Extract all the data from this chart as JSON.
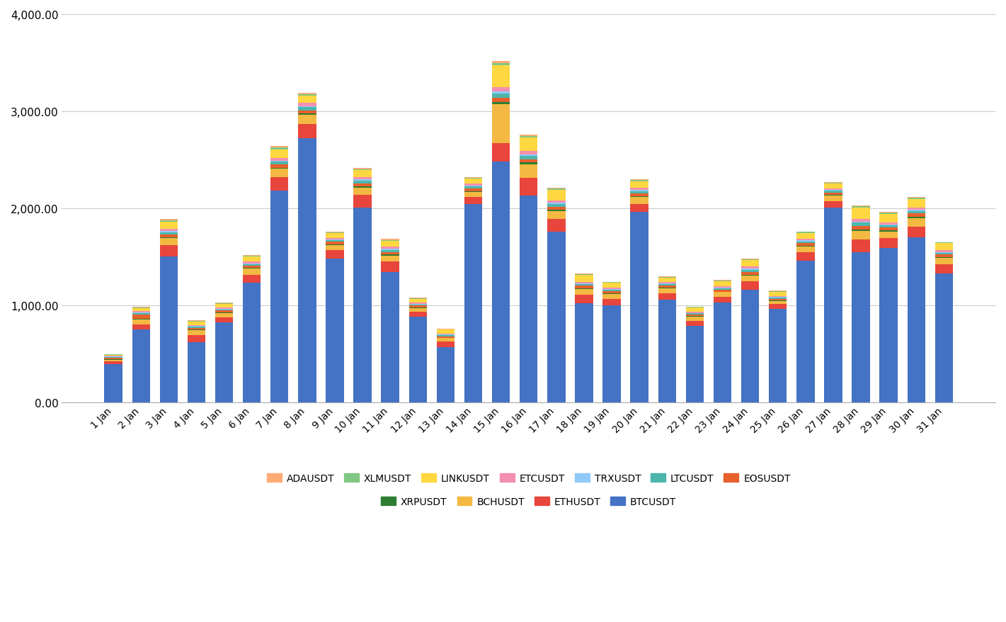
{
  "categories": [
    "1 Jan",
    "2 Jan",
    "3 Jan",
    "4 Jan",
    "5 Jan",
    "6 Jan",
    "7 Jan",
    "8 Jan",
    "9 Jan",
    "10 Jan",
    "11 Jan",
    "12 Jan",
    "13 Jan",
    "14 Jan",
    "15 Jan",
    "16 Jan",
    "17 Jan",
    "18 Jan",
    "19 Jan",
    "20 Jan",
    "21 Jan",
    "22 Jan",
    "23 Jan",
    "24 Jan",
    "25 Jan",
    "26 Jan",
    "27 Jan",
    "28 Jan",
    "29 Jan",
    "30 Jan",
    "31 Jan"
  ],
  "series": {
    "BTCUSDT": [
      390,
      750,
      1500,
      620,
      820,
      1230,
      2180,
      2720,
      1480,
      2010,
      1340,
      880,
      570,
      2040,
      2480,
      2130,
      1760,
      1020,
      1000,
      1960,
      1060,
      790,
      1030,
      1160,
      960,
      1460,
      2010,
      1550,
      1590,
      1700,
      1330
    ],
    "ETHUSDT": [
      30,
      55,
      120,
      70,
      55,
      80,
      140,
      150,
      85,
      130,
      110,
      50,
      55,
      75,
      190,
      180,
      130,
      85,
      65,
      85,
      65,
      50,
      60,
      85,
      50,
      85,
      65,
      130,
      100,
      110,
      90
    ],
    "BCHUSDT": [
      18,
      50,
      70,
      50,
      45,
      65,
      85,
      90,
      55,
      70,
      62,
      42,
      35,
      55,
      400,
      145,
      80,
      62,
      52,
      70,
      52,
      42,
      45,
      60,
      35,
      62,
      52,
      88,
      70,
      88,
      70
    ],
    "XRPUSDT": [
      4,
      8,
      12,
      8,
      7,
      8,
      12,
      15,
      8,
      12,
      10,
      6,
      4,
      8,
      25,
      16,
      12,
      8,
      6,
      10,
      6,
      4,
      6,
      8,
      5,
      8,
      8,
      12,
      10,
      12,
      8
    ],
    "EOSUSDT": [
      18,
      42,
      25,
      18,
      18,
      25,
      35,
      35,
      25,
      35,
      26,
      18,
      16,
      26,
      44,
      35,
      35,
      26,
      22,
      30,
      22,
      18,
      22,
      30,
      18,
      26,
      26,
      40,
      30,
      35,
      26
    ],
    "LTCUSDT": [
      8,
      12,
      25,
      12,
      12,
      16,
      26,
      30,
      16,
      26,
      22,
      12,
      12,
      20,
      44,
      35,
      26,
      16,
      14,
      22,
      14,
      12,
      14,
      22,
      12,
      18,
      18,
      30,
      22,
      26,
      18
    ],
    "TRXUSDT": [
      4,
      8,
      12,
      6,
      6,
      8,
      12,
      14,
      8,
      12,
      10,
      6,
      4,
      10,
      20,
      16,
      12,
      8,
      6,
      10,
      6,
      5,
      6,
      10,
      5,
      8,
      8,
      12,
      10,
      12,
      8
    ],
    "ETCUSDT": [
      8,
      16,
      25,
      12,
      12,
      16,
      30,
      35,
      16,
      26,
      22,
      12,
      12,
      20,
      44,
      35,
      26,
      16,
      14,
      22,
      14,
      12,
      14,
      22,
      12,
      18,
      18,
      30,
      24,
      26,
      18
    ],
    "LINKUSDT": [
      8,
      25,
      70,
      35,
      42,
      52,
      88,
      70,
      52,
      70,
      62,
      42,
      42,
      52,
      230,
      135,
      108,
      70,
      52,
      70,
      44,
      44,
      52,
      70,
      44,
      62,
      52,
      115,
      88,
      88,
      70
    ],
    "XLMUSDT": [
      4,
      8,
      16,
      6,
      6,
      8,
      16,
      16,
      8,
      12,
      10,
      6,
      4,
      8,
      20,
      16,
      12,
      8,
      6,
      10,
      6,
      4,
      6,
      8,
      5,
      8,
      6,
      12,
      10,
      12,
      8
    ],
    "ADAUSDT": [
      4,
      8,
      16,
      6,
      6,
      8,
      16,
      12,
      8,
      12,
      10,
      6,
      4,
      8,
      20,
      16,
      12,
      8,
      6,
      8,
      6,
      4,
      6,
      8,
      5,
      6,
      6,
      10,
      8,
      10,
      6
    ]
  },
  "colors": {
    "BTCUSDT": "#4472C4",
    "ETHUSDT": "#E8453C",
    "BCHUSDT": "#F4B942",
    "XRPUSDT": "#2E7D32",
    "EOSUSDT": "#E8602C",
    "LTCUSDT": "#4DB6AC",
    "TRXUSDT": "#90CAF9",
    "ETCUSDT": "#F48FB1",
    "LINKUSDT": "#FFD740",
    "XLMUSDT": "#81C784",
    "ADAUSDT": "#FFAB76"
  },
  "stack_order": [
    "BTCUSDT",
    "ETHUSDT",
    "BCHUSDT",
    "XRPUSDT",
    "EOSUSDT",
    "LTCUSDT",
    "TRXUSDT",
    "ETCUSDT",
    "LINKUSDT",
    "XLMUSDT",
    "ADAUSDT"
  ],
  "legend_row1": [
    "ADAUSDT",
    "XLMUSDT",
    "LINKUSDT",
    "ETCUSDT",
    "TRXUSDT",
    "LTCUSDT",
    "EOSUSDT"
  ],
  "legend_row2": [
    "XRPUSDT",
    "BCHUSDT",
    "ETHUSDT",
    "BTCUSDT"
  ],
  "ylim": [
    0,
    4000
  ],
  "yticks": [
    0,
    1000,
    2000,
    3000,
    4000
  ],
  "background_color": "#FFFFFF",
  "grid_color": "#CCCCCC",
  "bar_width": 0.65
}
